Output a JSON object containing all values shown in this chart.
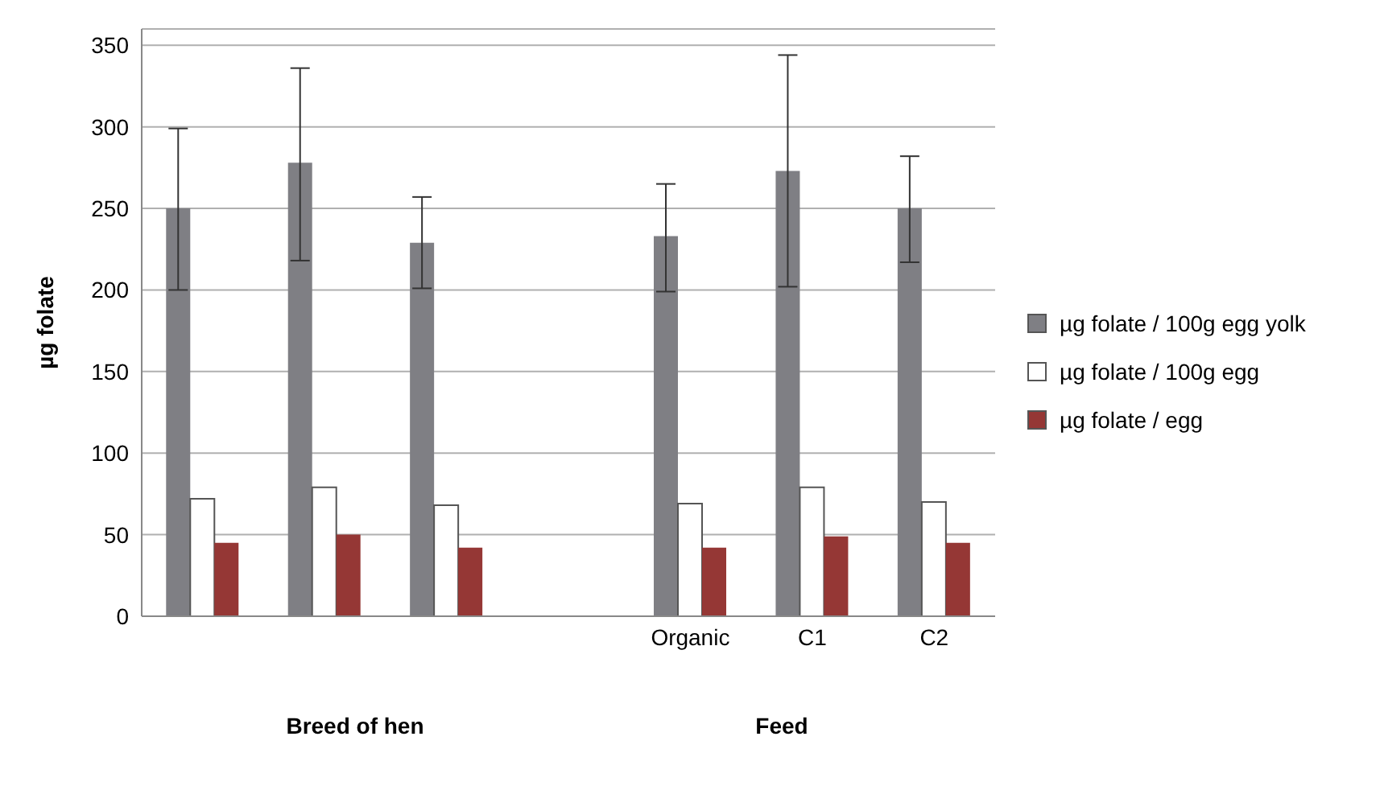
{
  "chart_data": {
    "type": "bar",
    "ylabel": "µg folate",
    "categories": [
      null,
      null,
      null,
      null,
      "Organic",
      "C1",
      "C2"
    ],
    "series": [
      {
        "name": "µg folate / 100g egg yolk",
        "color": "#7f7f84",
        "values": [
          250,
          278,
          229,
          null,
          233,
          273,
          250
        ],
        "errors": [
          [
            200,
            299
          ],
          [
            218,
            336
          ],
          [
            201,
            257
          ],
          null,
          [
            199,
            265
          ],
          [
            202,
            344
          ],
          [
            217,
            282
          ]
        ]
      },
      {
        "name": "µg folate / 100g egg",
        "color": "#ffffff",
        "values": [
          72,
          79,
          68,
          null,
          69,
          79,
          70
        ]
      },
      {
        "name": "µg folate / egg",
        "color": "#953735",
        "values": [
          45,
          50,
          42,
          null,
          42,
          49,
          45
        ]
      }
    ],
    "ylim": [
      0,
      360
    ],
    "yticks": [
      0,
      50,
      100,
      150,
      200,
      250,
      300,
      350
    ],
    "grid": "y",
    "legend": "right",
    "annotations": [
      "Breed of hen",
      "Feed"
    ]
  }
}
